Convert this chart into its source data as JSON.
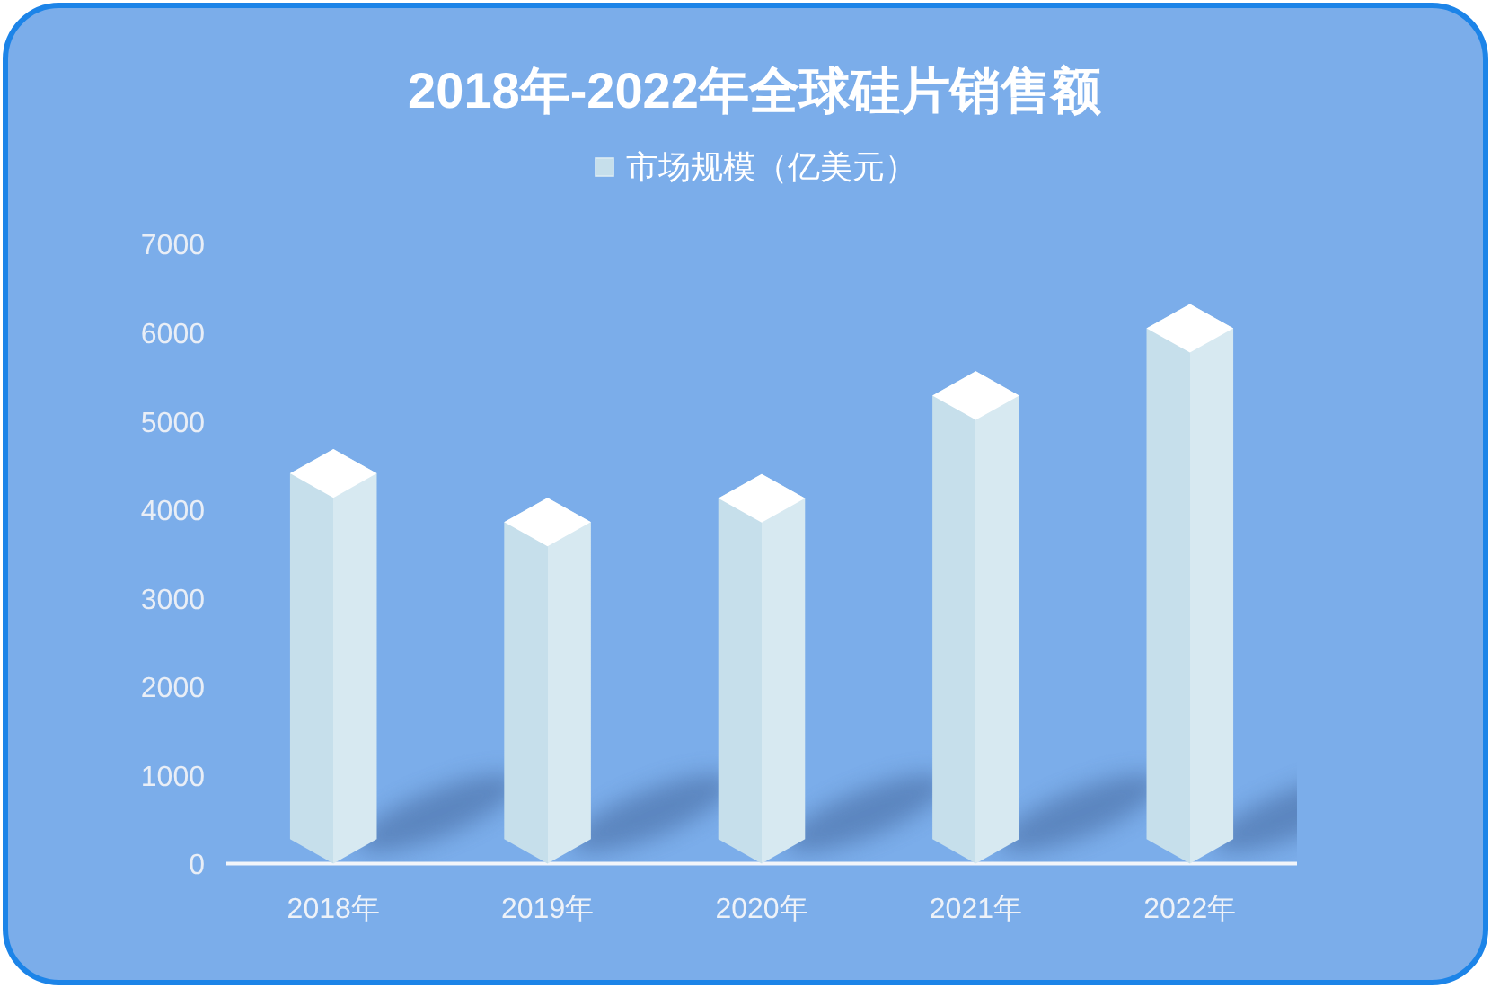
{
  "chart_data": {
    "type": "bar",
    "title": "2018年-2022年全球硅片销售额",
    "categories": [
      "2018年",
      "2019年",
      "2020年",
      "2021年",
      "2022年"
    ],
    "series": [
      {
        "name": "市场规模（亿美元）",
        "color": "#c6dfeb",
        "values": [
          4680,
          4130,
          4400,
          5560,
          6320
        ]
      }
    ],
    "ylim": [
      0,
      7000
    ],
    "yticks": [
      0,
      1000,
      2000,
      3000,
      4000,
      5000,
      6000,
      7000
    ],
    "legend": "top"
  }
}
